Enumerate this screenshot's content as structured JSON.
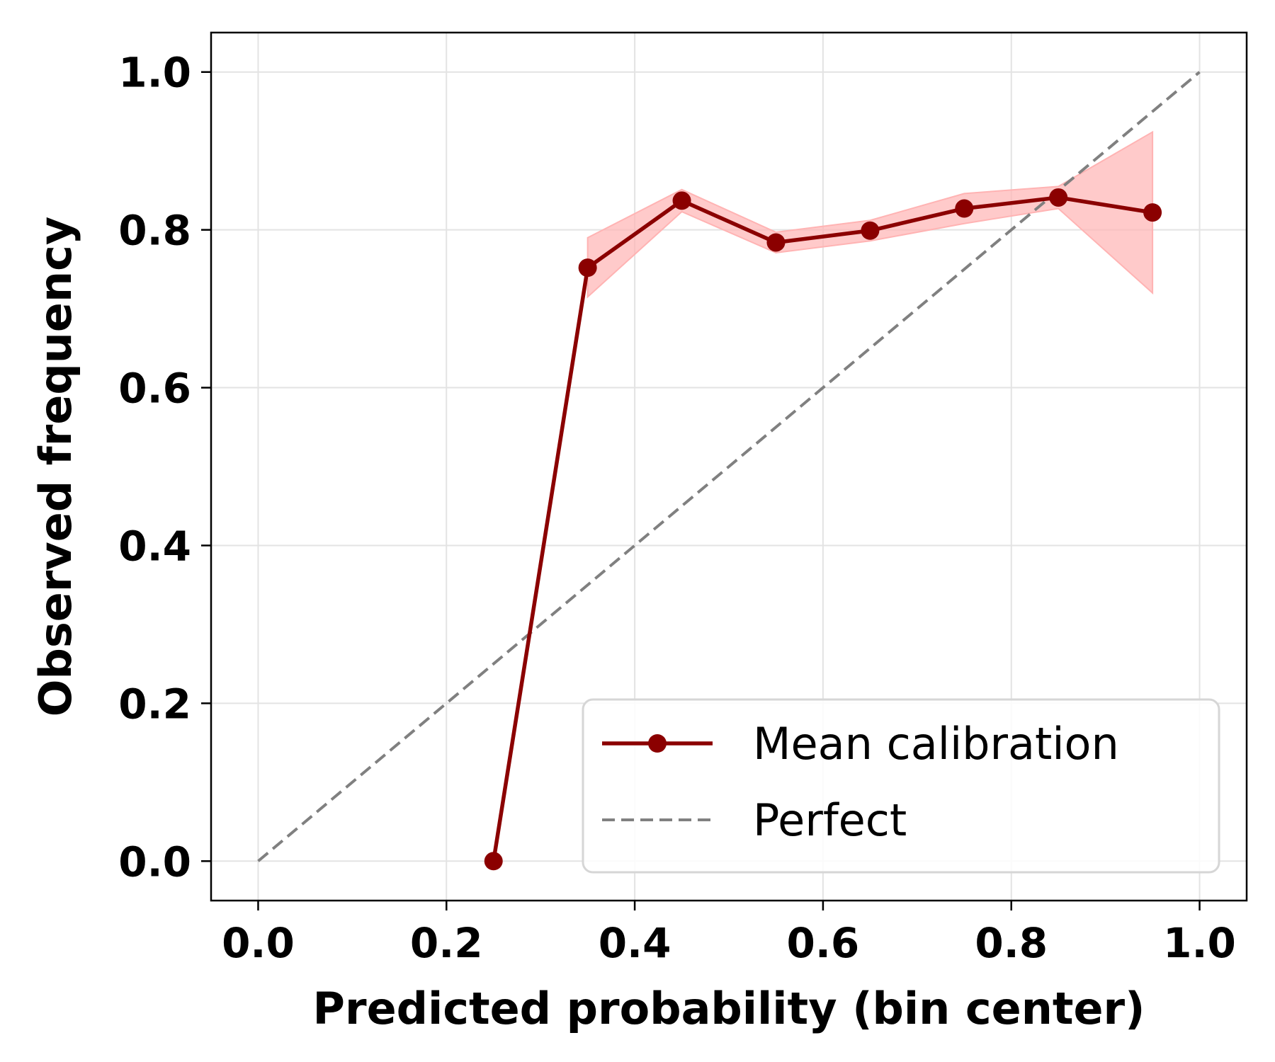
{
  "chart_data": {
    "type": "line",
    "title": "",
    "xlabel": "Predicted probability (bin center)",
    "ylabel": "Observed frequency",
    "xlim": [
      -0.05,
      1.05
    ],
    "ylim": [
      -0.05,
      1.05
    ],
    "xticks": [
      0.0,
      0.2,
      0.4,
      0.6,
      0.8,
      1.0
    ],
    "yticks": [
      0.0,
      0.2,
      0.4,
      0.6,
      0.8,
      1.0
    ],
    "xtick_labels": [
      "0.0",
      "0.2",
      "0.4",
      "0.6",
      "0.8",
      "1.0"
    ],
    "ytick_labels": [
      "0.0",
      "0.2",
      "0.4",
      "0.6",
      "0.8",
      "1.0"
    ],
    "grid": true,
    "legend_position": "lower-right",
    "series": [
      {
        "name": "Mean calibration",
        "color": "#8b0000",
        "style": "solid-with-markers",
        "x": [
          0.25,
          0.35,
          0.45,
          0.55,
          0.65,
          0.75,
          0.85,
          0.95
        ],
        "y": [
          0.0,
          0.752,
          0.837,
          0.784,
          0.799,
          0.827,
          0.841,
          0.822
        ],
        "band_lower": [
          0.0,
          0.715,
          0.823,
          0.771,
          0.786,
          0.808,
          0.827,
          0.72
        ],
        "band_upper": [
          0.0,
          0.79,
          0.851,
          0.797,
          0.812,
          0.846,
          0.855,
          0.924
        ],
        "band_color": "#ffb3b3"
      },
      {
        "name": "Perfect",
        "color": "#808080",
        "style": "dashed",
        "x": [
          0.0,
          1.0
        ],
        "y": [
          0.0,
          1.0
        ]
      }
    ]
  }
}
